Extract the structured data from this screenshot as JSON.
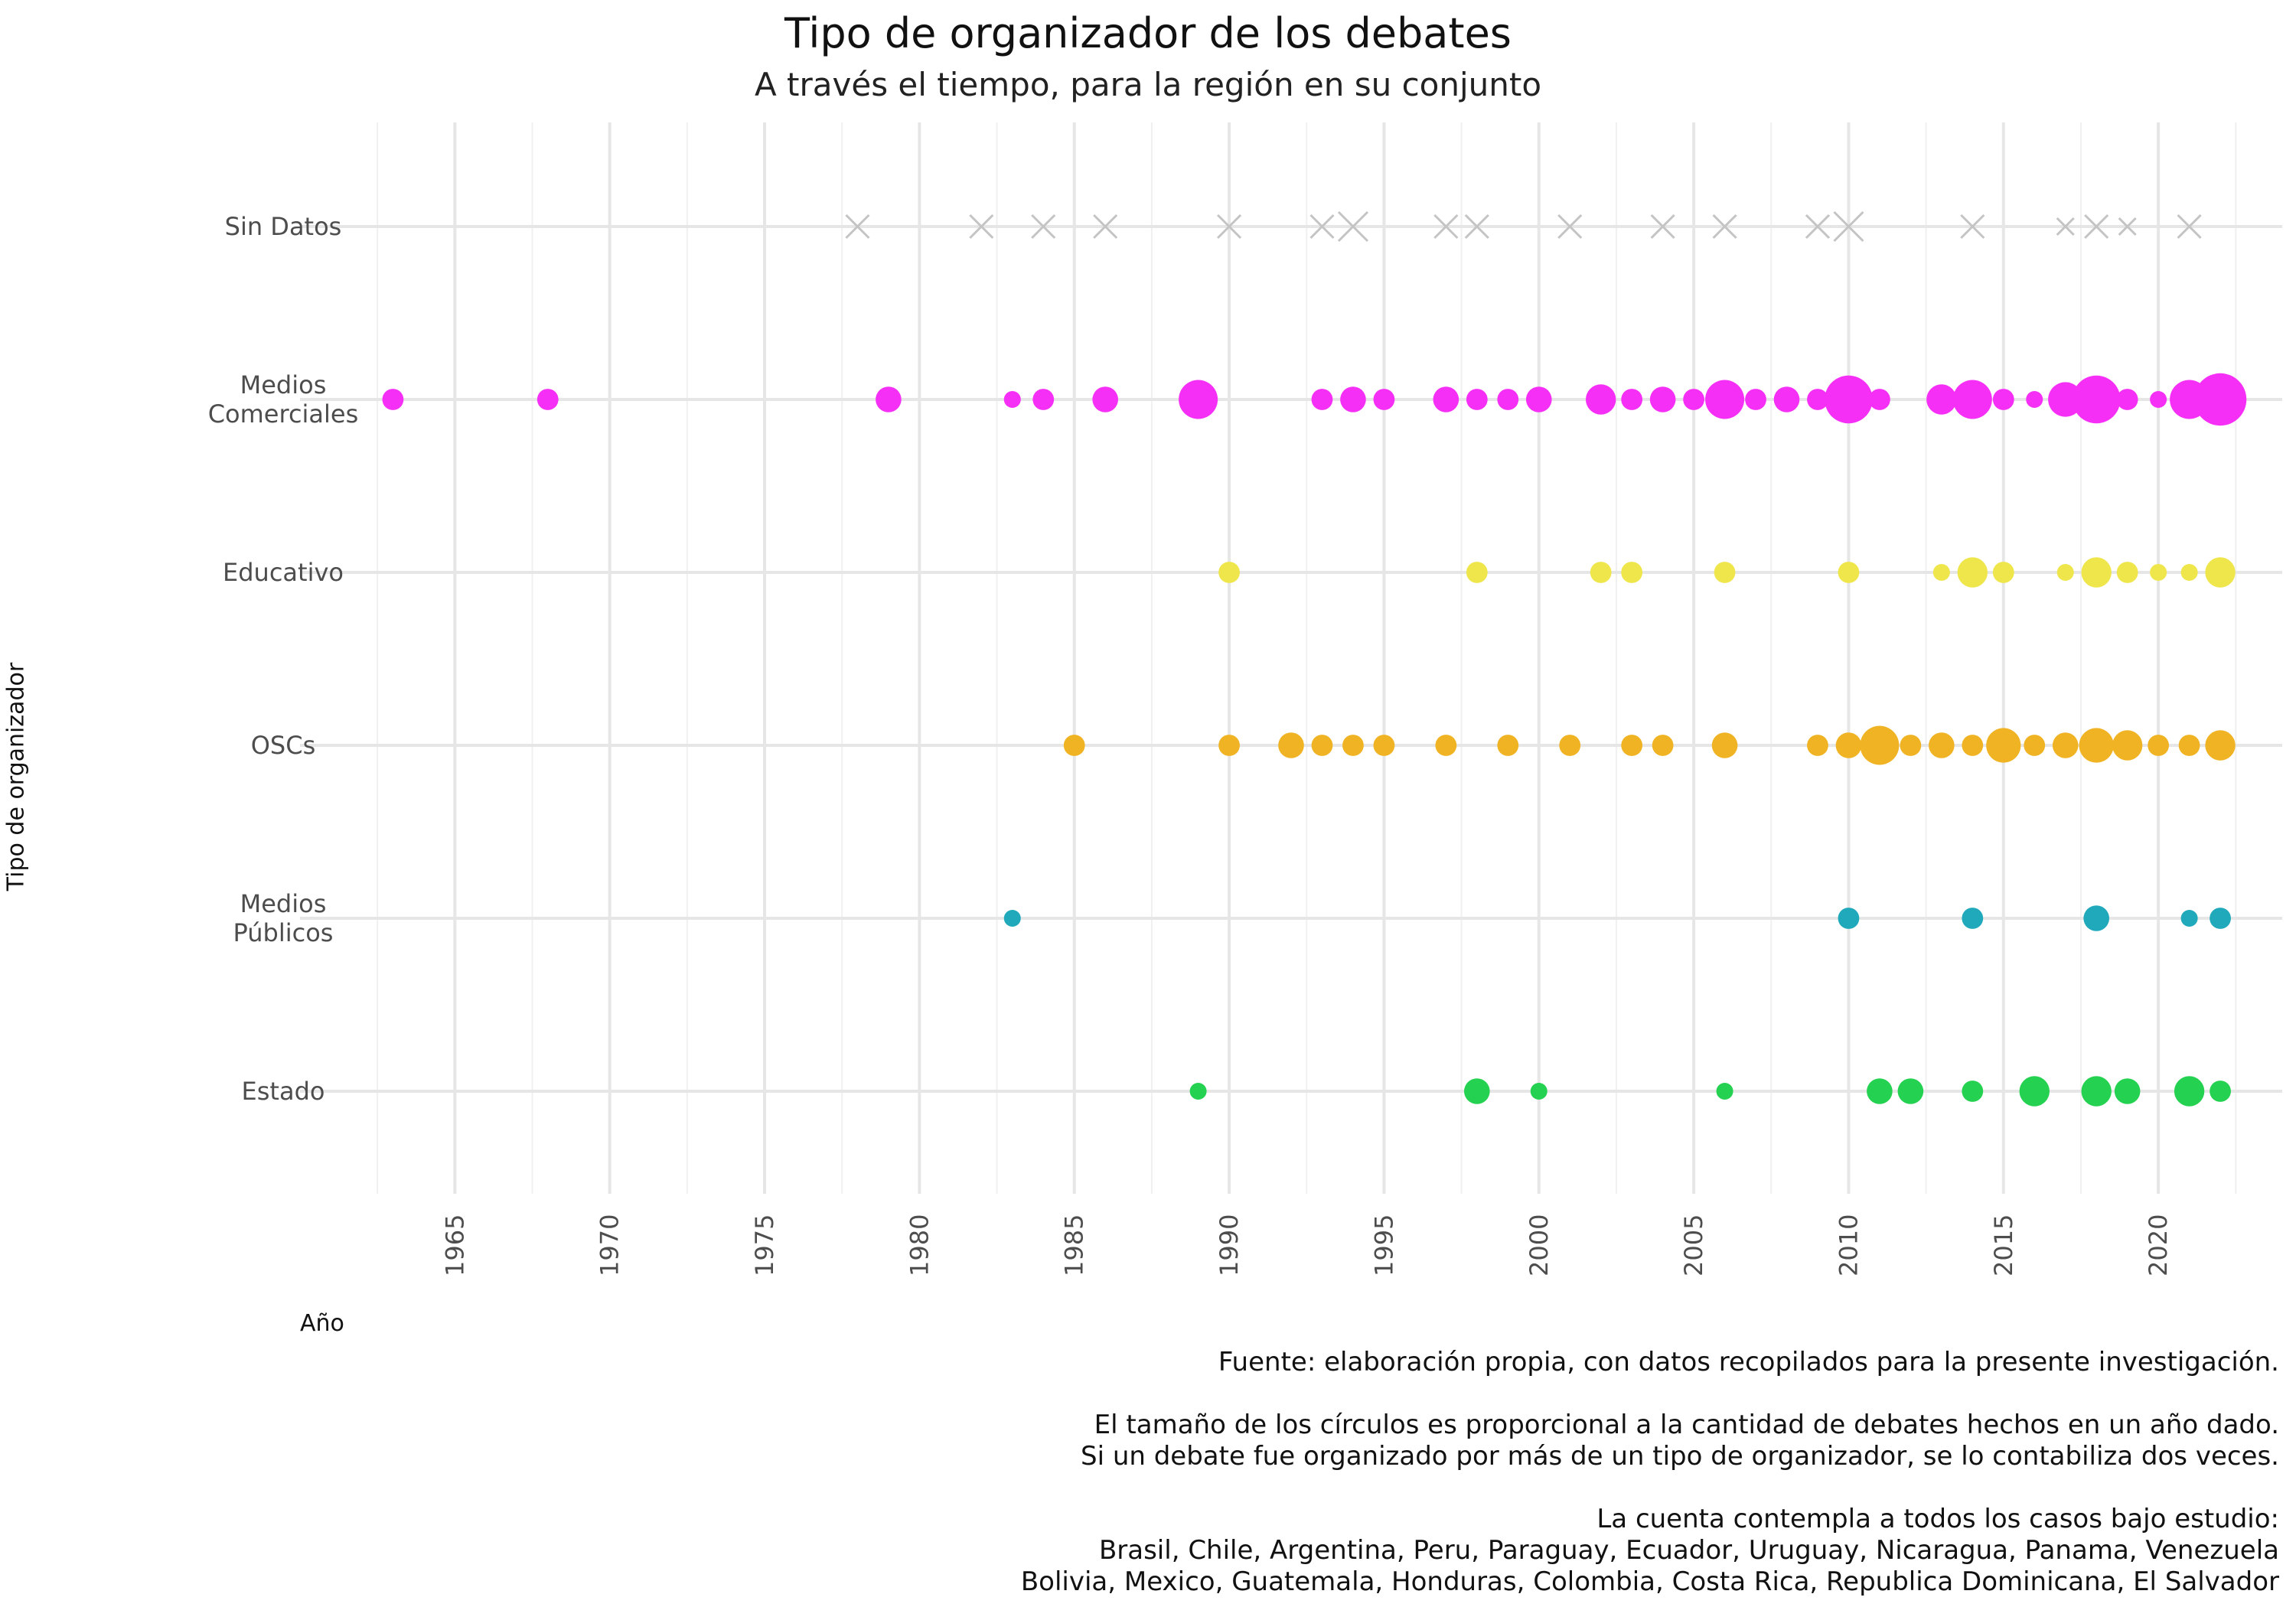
{
  "chart_data": {
    "type": "scatter",
    "title": "Tipo de organizador de los debates",
    "subtitle": "A través el tiempo, para la región en su conjunto",
    "xlabel": "Año",
    "ylabel": "Tipo de organizador",
    "xlim": [
      1960,
      2024
    ],
    "x_ticks": [
      1965,
      1970,
      1975,
      1980,
      1985,
      1990,
      1995,
      2000,
      2005,
      2010,
      2015,
      2020
    ],
    "categories": [
      "Sin Datos",
      "Medios Comerciales",
      "Educativo",
      "OSCs",
      "Medios Públicos",
      "Estado"
    ],
    "category_labels": [
      [
        "Sin Datos"
      ],
      [
        "Medios",
        "Comerciales"
      ],
      [
        "Educativo"
      ],
      [
        "OSCs"
      ],
      [
        "Medios",
        "Públicos"
      ],
      [
        "Estado"
      ]
    ],
    "grid": true,
    "series": [
      {
        "category": "Sin Datos",
        "color": "#c4c4c4",
        "marker": "x",
        "points": [
          [
            1978,
            2
          ],
          [
            1982,
            2
          ],
          [
            1984,
            2
          ],
          [
            1986,
            2
          ],
          [
            1990,
            2
          ],
          [
            1993,
            2
          ],
          [
            1994,
            3
          ],
          [
            1997,
            2
          ],
          [
            1998,
            2
          ],
          [
            2001,
            2
          ],
          [
            2004,
            2
          ],
          [
            2006,
            2
          ],
          [
            2009,
            2
          ],
          [
            2010,
            3
          ],
          [
            2014,
            2
          ],
          [
            2017,
            1
          ],
          [
            2018,
            2
          ],
          [
            2019,
            1
          ],
          [
            2021,
            2
          ]
        ]
      },
      {
        "category": "Medios Comerciales",
        "color": "#f52ff5",
        "marker": "circle",
        "points": [
          [
            1963,
            2
          ],
          [
            1968,
            2
          ],
          [
            1979,
            3
          ],
          [
            1983,
            1
          ],
          [
            1984,
            2
          ],
          [
            1986,
            3
          ],
          [
            1989,
            6
          ],
          [
            1993,
            2
          ],
          [
            1994,
            3
          ],
          [
            1995,
            2
          ],
          [
            1997,
            3
          ],
          [
            1998,
            2
          ],
          [
            1999,
            2
          ],
          [
            2000,
            3
          ],
          [
            2002,
            4
          ],
          [
            2003,
            2
          ],
          [
            2004,
            3
          ],
          [
            2005,
            2
          ],
          [
            2006,
            6
          ],
          [
            2007,
            2
          ],
          [
            2008,
            3
          ],
          [
            2009,
            2
          ],
          [
            2010,
            8
          ],
          [
            2011,
            2
          ],
          [
            2013,
            4
          ],
          [
            2014,
            6
          ],
          [
            2015,
            2
          ],
          [
            2016,
            1
          ],
          [
            2017,
            5
          ],
          [
            2018,
            8
          ],
          [
            2019,
            2
          ],
          [
            2020,
            1
          ],
          [
            2021,
            6
          ],
          [
            2022,
            9
          ]
        ]
      },
      {
        "category": "Educativo",
        "color": "#efe64c",
        "marker": "circle",
        "points": [
          [
            1990,
            2
          ],
          [
            1998,
            2
          ],
          [
            2002,
            2
          ],
          [
            2003,
            2
          ],
          [
            2006,
            2
          ],
          [
            2010,
            2
          ],
          [
            2013,
            1
          ],
          [
            2014,
            4
          ],
          [
            2015,
            2
          ],
          [
            2017,
            1
          ],
          [
            2018,
            4
          ],
          [
            2019,
            2
          ],
          [
            2020,
            1
          ],
          [
            2021,
            1
          ],
          [
            2022,
            4
          ]
        ]
      },
      {
        "category": "OSCs",
        "color": "#f0b323",
        "marker": "circle",
        "points": [
          [
            1985,
            2
          ],
          [
            1990,
            2
          ],
          [
            1992,
            3
          ],
          [
            1993,
            2
          ],
          [
            1994,
            2
          ],
          [
            1995,
            2
          ],
          [
            1997,
            2
          ],
          [
            1999,
            2
          ],
          [
            2001,
            2
          ],
          [
            2003,
            2
          ],
          [
            2004,
            2
          ],
          [
            2006,
            3
          ],
          [
            2009,
            2
          ],
          [
            2010,
            3
          ],
          [
            2011,
            6
          ],
          [
            2012,
            2
          ],
          [
            2013,
            3
          ],
          [
            2014,
            2
          ],
          [
            2015,
            5
          ],
          [
            2016,
            2
          ],
          [
            2017,
            3
          ],
          [
            2018,
            5
          ],
          [
            2019,
            4
          ],
          [
            2020,
            2
          ],
          [
            2021,
            2
          ],
          [
            2022,
            4
          ]
        ]
      },
      {
        "category": "Medios Públicos",
        "color": "#1fa9bb",
        "marker": "circle",
        "points": [
          [
            1983,
            1
          ],
          [
            2010,
            2
          ],
          [
            2014,
            2
          ],
          [
            2018,
            3
          ],
          [
            2021,
            1
          ],
          [
            2022,
            2
          ]
        ]
      },
      {
        "category": "Estado",
        "color": "#25d150",
        "marker": "circle",
        "points": [
          [
            1989,
            1
          ],
          [
            1998,
            3
          ],
          [
            2000,
            1
          ],
          [
            2006,
            1
          ],
          [
            2011,
            3
          ],
          [
            2012,
            3
          ],
          [
            2014,
            2
          ],
          [
            2016,
            4
          ],
          [
            2018,
            4
          ],
          [
            2019,
            3
          ],
          [
            2021,
            4
          ],
          [
            2022,
            2
          ]
        ]
      }
    ],
    "caption": [
      "Fuente: elaboración propia, con datos recopilados para la presente investigación.",
      "",
      "El tamaño de los círculos es proporcional a la cantidad de debates hechos en un año dado.",
      "Si un debate fue organizado por más de un tipo de organizador, se lo contabiliza dos veces.",
      "",
      "La cuenta contempla a todos los casos bajo estudio:",
      "Brasil, Chile, Argentina, Peru, Paraguay, Ecuador, Uruguay, Nicaragua, Panama, Venezuela",
      "Bolivia, Mexico, Guatemala, Honduras, Colombia, Costa Rica, Republica Dominicana, El Salvador"
    ]
  }
}
